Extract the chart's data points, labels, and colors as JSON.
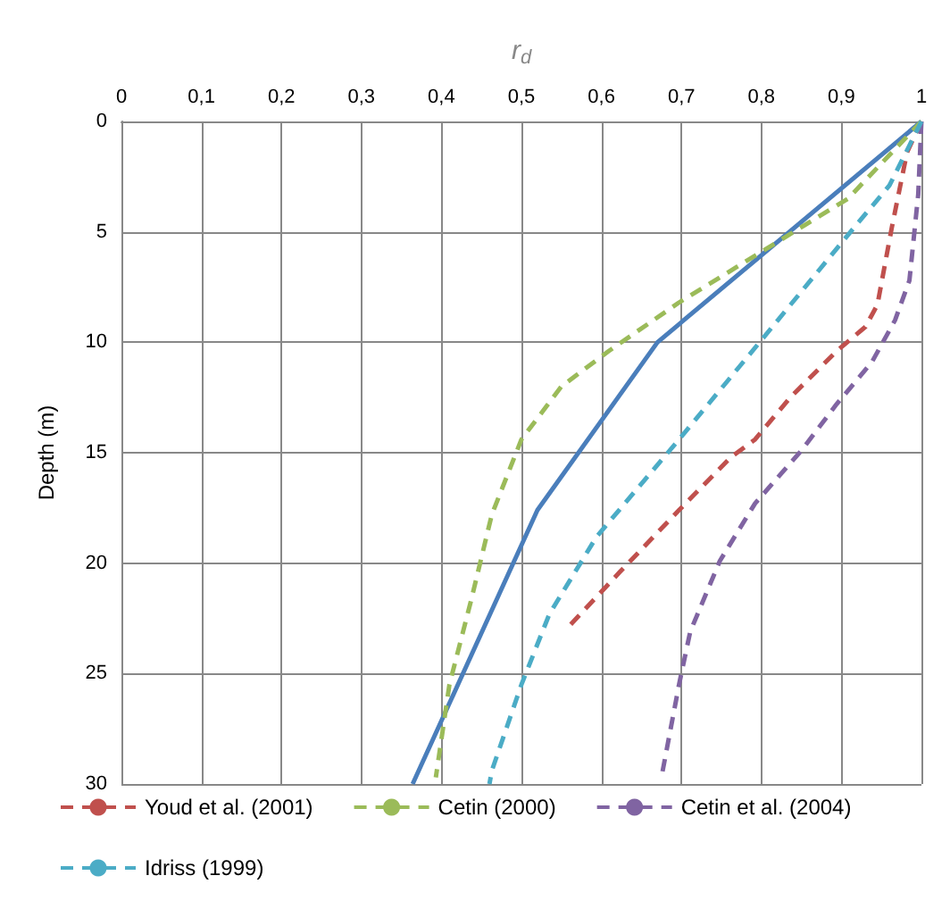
{
  "chart_data": {
    "type": "line",
    "xlabel": "r$_{d}$",
    "ylabel": "Depth (m)",
    "xlim": [
      0,
      1
    ],
    "xticks": [
      0,
      {
        "value": 0.1,
        "label": "0,1"
      },
      {
        "value": 0.2,
        "label": "0,2"
      },
      {
        "value": 0.3,
        "label": "0,3"
      },
      {
        "value": 0.4,
        "label": "0,4"
      },
      {
        "value": 0.5,
        "label": "0,5"
      },
      {
        "value": 0.6,
        "label": "0,6"
      },
      {
        "value": 0.7,
        "label": "0,7"
      },
      {
        "value": 0.8,
        "label": "0,8"
      },
      {
        "value": 0.9,
        "label": "0,9"
      },
      1
    ],
    "ylim": [
      30,
      0
    ],
    "yticks": [
      0,
      5,
      10,
      15,
      20,
      25,
      30
    ],
    "grid": true,
    "legend": "bottom",
    "marker": "none",
    "series": [
      {
        "color": "#4a7ebb",
        "line_style": "solid",
        "x": [
          1,
          0.67,
          0.52,
          0.364
        ],
        "values": [
          0,
          10,
          17.6,
          30
        ]
      },
      {
        "name": "Youd et al. (2001)",
        "color": "#c0504d",
        "line_style": "dashed",
        "x": [
          1,
          0.982,
          0.963,
          0.945,
          0.93,
          0.894,
          0.836,
          0.792,
          0.762,
          0.697,
          0.623,
          0.561
        ],
        "values": [
          0,
          1.4,
          4.8,
          8.3,
          9.3,
          10.4,
          12.5,
          14.4,
          15.2,
          17.6,
          20.4,
          22.8
        ]
      },
      {
        "name": "Cetin (2000)",
        "color": "#9bbb59",
        "line_style": "dashed",
        "x": [
          1,
          0.908,
          0.8,
          0.697,
          0.609,
          0.55,
          0.5,
          0.463,
          0.437,
          0.41,
          0.393
        ],
        "values": [
          0,
          3.5,
          5.9,
          8.2,
          10.4,
          12,
          14.4,
          17.8,
          21.7,
          25.5,
          29.7
        ]
      },
      {
        "name": "Cetin et al. (2004)",
        "color": "#8064a2",
        "line_style": "dashed",
        "x": [
          1,
          0.996,
          0.985,
          0.967,
          0.938,
          0.894,
          0.85,
          0.792,
          0.748,
          0.711,
          0.697,
          0.675
        ],
        "values": [
          0,
          3.3,
          7.2,
          9,
          10.9,
          12.8,
          14.9,
          17.3,
          19.9,
          23.1,
          25.5,
          29.7
        ]
      },
      {
        "name": "Idriss (1999)",
        "color": "#4bacc6",
        "line_style": "dashed",
        "x": [
          1,
          0.96,
          0.916,
          0.8,
          0.697,
          0.594,
          0.535,
          0.5,
          0.463,
          0.46
        ],
        "values": [
          0,
          2.9,
          4.8,
          9.9,
          14.4,
          18.8,
          22.3,
          25.5,
          29.4,
          30
        ]
      }
    ]
  }
}
